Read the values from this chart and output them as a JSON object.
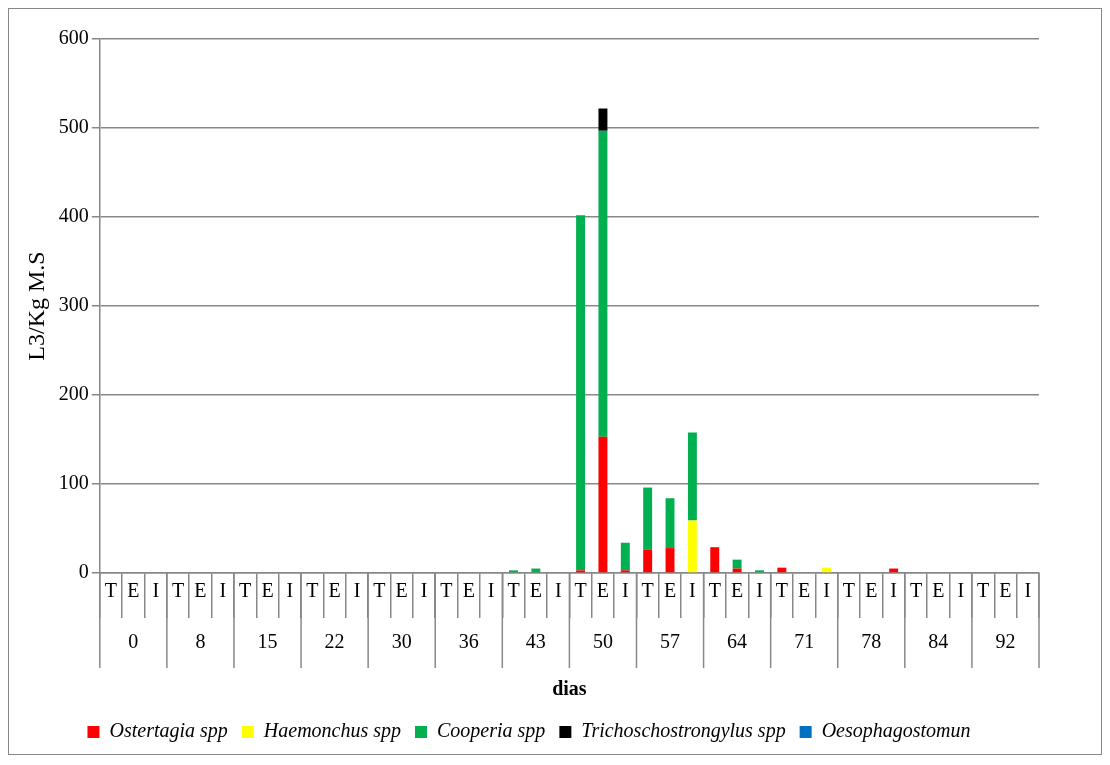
{
  "chart_data": {
    "type": "bar",
    "stacked": true,
    "xlabel": "dias",
    "ylabel": "L3/Kg M.S",
    "categories": [
      "T",
      "E",
      "I",
      "T",
      "E",
      "I",
      "T",
      "E",
      "I",
      "T",
      "E",
      "I",
      "T",
      "E",
      "I",
      "T",
      "E",
      "I",
      "T",
      "E",
      "I",
      "T",
      "E",
      "I",
      "T",
      "E",
      "I",
      "T",
      "E",
      "I",
      "T",
      "E",
      "I",
      "T",
      "E",
      "I",
      "T",
      "E",
      "I",
      "T",
      "E",
      "I"
    ],
    "annotations": [
      "0",
      "8",
      "15",
      "22",
      "30",
      "36",
      "43",
      "50",
      "57",
      "64",
      "71",
      "78",
      "84",
      "92"
    ],
    "series": [
      {
        "name": "Ostertagia spp",
        "color": "#ff0000",
        "values": [
          0,
          0,
          0,
          0,
          0,
          0,
          0,
          0,
          0,
          0,
          0,
          0,
          0,
          0,
          0,
          0,
          0,
          0,
          0,
          0,
          0,
          3,
          153,
          3,
          26,
          28,
          0,
          29,
          5,
          0,
          6,
          0,
          0,
          0,
          0,
          5,
          0,
          0,
          0,
          0,
          0,
          0
        ]
      },
      {
        "name": "Haemonchus spp",
        "color": "#ffff00",
        "values": [
          0,
          0,
          0,
          0,
          0,
          0,
          0,
          0,
          0,
          0,
          0,
          0,
          0,
          0,
          0,
          0,
          0,
          0,
          0,
          0,
          0,
          0,
          0,
          0,
          0,
          0,
          59,
          0,
          0,
          null,
          0,
          0,
          6,
          0,
          0,
          0,
          0,
          0,
          0,
          0,
          0,
          0
        ]
      },
      {
        "name": "Cooperia spp",
        "color": "#00b050",
        "values": [
          0,
          0,
          0,
          0,
          0,
          0,
          0,
          0,
          0,
          0,
          0,
          0,
          0,
          0,
          0,
          0,
          0,
          0,
          3,
          5,
          0,
          399,
          344,
          31,
          70,
          56,
          99,
          0,
          10,
          3,
          0,
          0,
          0,
          0,
          0,
          0,
          0,
          0,
          0,
          0,
          0,
          0
        ]
      },
      {
        "name": "Trichoschostrongylus spp",
        "color": "#000000",
        "values": [
          0,
          0,
          0,
          0,
          0,
          0,
          0,
          0,
          0,
          0,
          0,
          0,
          0,
          0,
          0,
          0,
          0,
          0,
          0,
          0,
          0,
          0,
          25,
          0,
          0,
          0,
          0,
          0,
          0,
          0,
          0,
          0,
          0,
          0,
          0,
          0,
          0,
          0,
          0,
          0,
          0,
          0
        ]
      },
      {
        "name": "Oesophagostomun",
        "color": "#0070c0",
        "values": [
          0,
          0,
          0,
          0,
          0,
          0,
          0,
          0,
          0,
          0,
          0,
          0,
          0,
          0,
          0,
          0,
          0,
          0,
          0,
          0,
          0,
          0,
          0,
          0,
          0,
          0,
          0,
          0,
          0,
          0,
          0,
          0,
          0,
          0,
          0,
          0,
          0,
          0,
          0,
          0,
          0,
          0
        ]
      }
    ],
    "ylim": [
      0,
      600
    ],
    "yticks": [
      0,
      100,
      200,
      300,
      400,
      500,
      600
    ],
    "grid": "y",
    "legend": "bottom"
  }
}
